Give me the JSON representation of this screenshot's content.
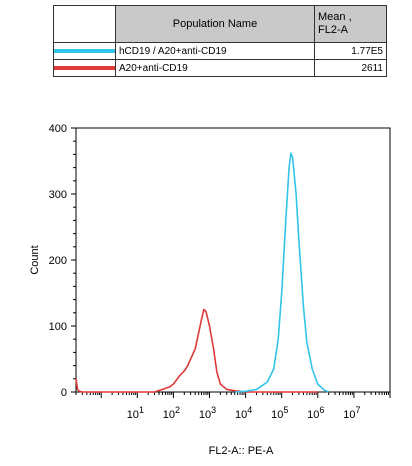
{
  "legend": {
    "header_name": "Population Name",
    "header_mean": "Mean ,\nFL2-A",
    "rows": [
      {
        "name": "hCD19 / A20+anti-CD19",
        "mean": "1.77E5",
        "color": "#33c4e8"
      },
      {
        "name": "A20+anti-CD19",
        "mean": "2611",
        "color": "#e03a3a"
      }
    ]
  },
  "chart_data": {
    "type": "line",
    "xlabel": "FL2-A:: PE-A",
    "ylabel": "Count",
    "xscale": "log",
    "xlim": [
      0.2,
      100000000
    ],
    "ylim": [
      0,
      400
    ],
    "yticks": [
      0,
      100,
      200,
      300,
      400
    ],
    "xticks_exp": [
      1,
      2,
      3,
      4,
      5,
      6,
      7
    ],
    "xtick_base": "10",
    "grid": false,
    "series": [
      {
        "name": "A20+anti-CD19",
        "color": "#e03a3a",
        "points": [
          [
            0.2,
            20
          ],
          [
            0.22,
            4
          ],
          [
            0.25,
            1
          ],
          [
            0.3,
            0
          ],
          [
            10,
            0
          ],
          [
            30,
            0
          ],
          [
            50,
            4
          ],
          [
            80,
            8
          ],
          [
            100,
            12
          ],
          [
            150,
            25
          ],
          [
            200,
            32
          ],
          [
            250,
            40
          ],
          [
            300,
            50
          ],
          [
            400,
            65
          ],
          [
            500,
            90
          ],
          [
            600,
            110
          ],
          [
            700,
            125
          ],
          [
            800,
            122
          ],
          [
            1000,
            100
          ],
          [
            1300,
            65
          ],
          [
            1600,
            30
          ],
          [
            2000,
            12
          ],
          [
            3000,
            4
          ],
          [
            5000,
            2
          ],
          [
            10000,
            0
          ],
          [
            200000,
            0
          ],
          [
            1000000,
            0
          ]
        ]
      },
      {
        "name": "hCD19 / A20+anti-CD19",
        "color": "#33c4e8",
        "points": [
          [
            5000,
            0
          ],
          [
            10000,
            1
          ],
          [
            20000,
            4
          ],
          [
            40000,
            15
          ],
          [
            60000,
            35
          ],
          [
            80000,
            80
          ],
          [
            100000,
            150
          ],
          [
            130000,
            260
          ],
          [
            160000,
            340
          ],
          [
            180000,
            362
          ],
          [
            200000,
            355
          ],
          [
            250000,
            300
          ],
          [
            300000,
            230
          ],
          [
            400000,
            130
          ],
          [
            500000,
            75
          ],
          [
            700000,
            35
          ],
          [
            1000000,
            12
          ],
          [
            1500000,
            3
          ],
          [
            2000000,
            0
          ]
        ]
      }
    ]
  }
}
